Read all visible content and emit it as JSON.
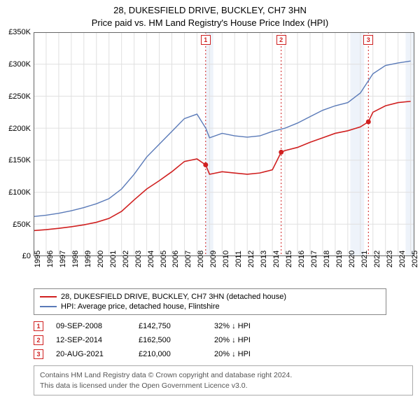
{
  "title_line1": "28, DUKESFIELD DRIVE, BUCKLEY, CH7 3HN",
  "title_line2": "Price paid vs. HM Land Registry's House Price Index (HPI)",
  "chart": {
    "type": "line",
    "background_color": "#ffffff",
    "grid_color": "#e0e0e0",
    "axis_color": "#666666",
    "marker_border_color": "#d02020",
    "marker_dash_color": "#d02020",
    "shaded_bands": [
      {
        "x_start": 2008.69,
        "x_end": 2009.3,
        "color": "#eef3fa"
      },
      {
        "x_start": 2020.2,
        "x_end": 2021.3,
        "color": "#eef3fa"
      },
      {
        "x_start": 2024.6,
        "x_end": 2025.3,
        "color": "#eef3fa"
      }
    ],
    "xlim": [
      1995,
      2025.3
    ],
    "ylim": [
      0,
      350000
    ],
    "x_ticks": [
      1995,
      1996,
      1997,
      1998,
      1999,
      2000,
      2001,
      2002,
      2003,
      2004,
      2005,
      2006,
      2007,
      2008,
      2009,
      2010,
      2011,
      2012,
      2013,
      2014,
      2015,
      2016,
      2017,
      2018,
      2019,
      2020,
      2021,
      2022,
      2023,
      2024,
      2025
    ],
    "y_ticks": [
      {
        "v": 0,
        "label": "£0"
      },
      {
        "v": 50000,
        "label": "£50K"
      },
      {
        "v": 100000,
        "label": "£100K"
      },
      {
        "v": 150000,
        "label": "£150K"
      },
      {
        "v": 200000,
        "label": "£200K"
      },
      {
        "v": 250000,
        "label": "£250K"
      },
      {
        "v": 300000,
        "label": "£300K"
      },
      {
        "v": 350000,
        "label": "£350K"
      }
    ],
    "tick_fontsize": 11,
    "title_fontsize": 13,
    "series": [
      {
        "name": "price_paid",
        "label": "28, DUKESFIELD DRIVE, BUCKLEY, CH7 3HN (detached house)",
        "color": "#d02020",
        "line_width": 1.6,
        "points": [
          [
            1995,
            40000
          ],
          [
            1996,
            41500
          ],
          [
            1997,
            43500
          ],
          [
            1998,
            46000
          ],
          [
            1999,
            49000
          ],
          [
            2000,
            53000
          ],
          [
            2001,
            59000
          ],
          [
            2002,
            70000
          ],
          [
            2003,
            88000
          ],
          [
            2004,
            105000
          ],
          [
            2005,
            118000
          ],
          [
            2006,
            132000
          ],
          [
            2007,
            148000
          ],
          [
            2008,
            152000
          ],
          [
            2008.69,
            142750
          ],
          [
            2009,
            128000
          ],
          [
            2010,
            132000
          ],
          [
            2011,
            130000
          ],
          [
            2012,
            128000
          ],
          [
            2013,
            130000
          ],
          [
            2014,
            135000
          ],
          [
            2014.7,
            162500
          ],
          [
            2015,
            165000
          ],
          [
            2016,
            170000
          ],
          [
            2017,
            178000
          ],
          [
            2018,
            185000
          ],
          [
            2019,
            192000
          ],
          [
            2020,
            196000
          ],
          [
            2021,
            202000
          ],
          [
            2021.64,
            210000
          ],
          [
            2022,
            225000
          ],
          [
            2023,
            235000
          ],
          [
            2024,
            240000
          ],
          [
            2025,
            242000
          ]
        ]
      },
      {
        "name": "hpi",
        "label": "HPI: Average price, detached house, Flintshire",
        "color": "#5a7ab8",
        "line_width": 1.4,
        "points": [
          [
            1995,
            62000
          ],
          [
            1996,
            64000
          ],
          [
            1997,
            67000
          ],
          [
            1998,
            71000
          ],
          [
            1999,
            76000
          ],
          [
            2000,
            82000
          ],
          [
            2001,
            90000
          ],
          [
            2002,
            105000
          ],
          [
            2003,
            128000
          ],
          [
            2004,
            155000
          ],
          [
            2005,
            175000
          ],
          [
            2006,
            195000
          ],
          [
            2007,
            215000
          ],
          [
            2008,
            222000
          ],
          [
            2008.7,
            200000
          ],
          [
            2009,
            185000
          ],
          [
            2010,
            192000
          ],
          [
            2011,
            188000
          ],
          [
            2012,
            186000
          ],
          [
            2013,
            188000
          ],
          [
            2014,
            195000
          ],
          [
            2015,
            200000
          ],
          [
            2016,
            208000
          ],
          [
            2017,
            218000
          ],
          [
            2018,
            228000
          ],
          [
            2019,
            235000
          ],
          [
            2020,
            240000
          ],
          [
            2021,
            255000
          ],
          [
            2022,
            285000
          ],
          [
            2023,
            298000
          ],
          [
            2024,
            302000
          ],
          [
            2025,
            305000
          ]
        ]
      }
    ],
    "event_markers": [
      {
        "n": "1",
        "x": 2008.69,
        "y": 142750
      },
      {
        "n": "2",
        "x": 2014.7,
        "y": 162500
      },
      {
        "n": "3",
        "x": 2021.64,
        "y": 210000
      }
    ]
  },
  "legend": {
    "items": [
      {
        "color": "#d02020",
        "label_key": "chart.series.0.label"
      },
      {
        "color": "#5a7ab8",
        "label_key": "chart.series.1.label"
      }
    ]
  },
  "events": [
    {
      "n": "1",
      "date": "09-SEP-2008",
      "price": "£142,750",
      "delta": "32% ↓ HPI"
    },
    {
      "n": "2",
      "date": "12-SEP-2014",
      "price": "£162,500",
      "delta": "20% ↓ HPI"
    },
    {
      "n": "3",
      "date": "20-AUG-2021",
      "price": "£210,000",
      "delta": "20% ↓ HPI"
    }
  ],
  "footer_line1": "Contains HM Land Registry data © Crown copyright and database right 2024.",
  "footer_line2": "This data is licensed under the Open Government Licence v3.0."
}
